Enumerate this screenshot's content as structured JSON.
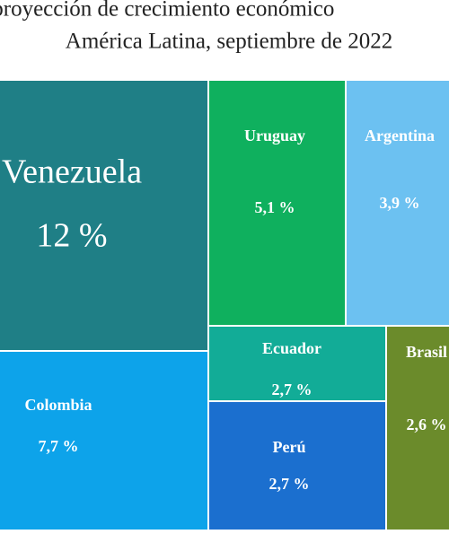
{
  "chart_data": {
    "type": "treemap",
    "title_lines": [
      "al: proyección de crecimiento económico",
      "América Latina, septiembre de 2022"
    ],
    "categories": [
      "Venezuela",
      "Colombia",
      "Uruguay",
      "Argentina",
      "Ecuador",
      "Perú",
      "Brasil"
    ],
    "values": [
      12,
      7.7,
      5.1,
      3.9,
      2.7,
      2.7,
      2.6
    ],
    "value_labels": [
      "12 %",
      "7,7 %",
      "5,1 %",
      "3,9 %",
      "2,7 %",
      "2,7 %",
      "2,6 %"
    ],
    "colors": [
      "#1f7f86",
      "#0da3ea",
      "#0fb05e",
      "#6cc1f1",
      "#12ac97",
      "#1b6fcf",
      "#6b8b2b"
    ]
  }
}
